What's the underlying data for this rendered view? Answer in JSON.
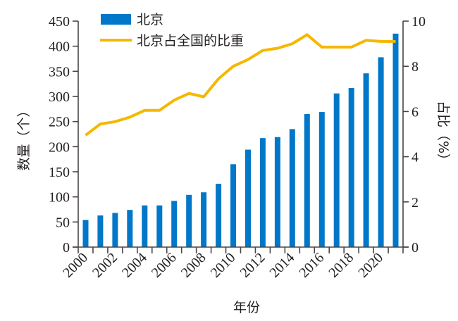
{
  "chart_data": {
    "type": "bar",
    "categories": [
      "2000",
      "2001",
      "2002",
      "2003",
      "2004",
      "2005",
      "2006",
      "2007",
      "2008",
      "2009",
      "2010",
      "2011",
      "2012",
      "2013",
      "2014",
      "2015",
      "2016",
      "2017",
      "2018",
      "2019",
      "2020",
      "2021"
    ],
    "x_tick_labels": [
      "2000",
      "2002",
      "2004",
      "2006",
      "2008",
      "2010",
      "2012",
      "2014",
      "2016",
      "2018",
      "2020"
    ],
    "series": [
      {
        "name": "北京",
        "type": "bar",
        "axis": "left",
        "color": "#0077c8",
        "values": [
          54,
          63,
          68,
          74,
          83,
          83,
          92,
          104,
          109,
          126,
          165,
          194,
          217,
          219,
          235,
          265,
          269,
          306,
          317,
          346,
          378,
          425
        ]
      },
      {
        "name": "北京占全国的比重",
        "type": "line",
        "axis": "right",
        "color": "#f5b800",
        "values": [
          4.95,
          5.45,
          5.55,
          5.75,
          6.05,
          6.05,
          6.5,
          6.8,
          6.65,
          7.45,
          8.0,
          8.3,
          8.7,
          8.8,
          9.0,
          9.4,
          8.85,
          8.85,
          8.85,
          9.15,
          9.1,
          9.1
        ]
      }
    ],
    "xlabel": "年份",
    "ylabel": "数量（个）",
    "ylabel_right": "占比（%）",
    "ylim": [
      0,
      450
    ],
    "ylim_right": [
      0,
      10
    ],
    "yticks": [
      0,
      50,
      100,
      150,
      200,
      250,
      300,
      350,
      400,
      450
    ],
    "yticks_right": [
      0,
      2,
      4,
      6,
      8,
      10
    ],
    "legend_position": "top-left",
    "grid": false
  }
}
